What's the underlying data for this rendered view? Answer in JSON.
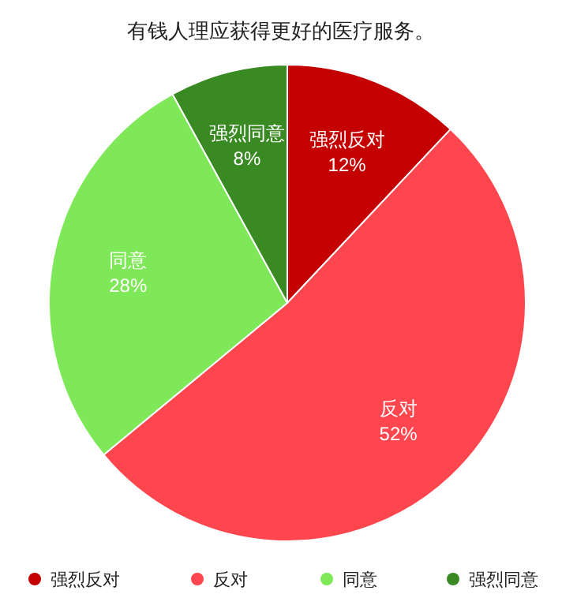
{
  "chart_data": {
    "type": "pie",
    "title": "有钱人理应获得更好的医疗服务。",
    "categories": [
      "强烈反对",
      "反对",
      "同意",
      "强烈同意"
    ],
    "values": [
      12,
      52,
      28,
      8
    ],
    "colors": [
      "#c40000",
      "#ff454d",
      "#7ee858",
      "#3a8a24"
    ],
    "value_labels": [
      "12%",
      "52%",
      "28%",
      "8%"
    ],
    "legend": "bottom"
  }
}
